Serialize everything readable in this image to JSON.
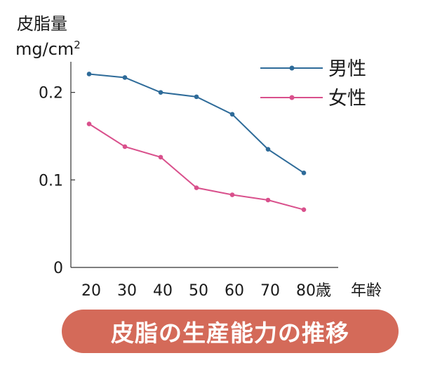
{
  "chart_data": {
    "type": "line",
    "ylabel": "皮脂量",
    "yunit_base": "mg/cm",
    "yunit_exp": "2",
    "xlabel": "年齢",
    "categories": [
      "20",
      "30",
      "40",
      "50",
      "60",
      "70",
      "80歳"
    ],
    "yticks": [
      "0",
      "0.1",
      "0.2"
    ],
    "ylim": [
      0,
      0.235
    ],
    "grid": false,
    "legend_position": "top-right",
    "series": [
      {
        "name": "男性",
        "color": "#2e6b99",
        "values": [
          0.221,
          0.217,
          0.2,
          0.195,
          0.175,
          0.135,
          0.108
        ]
      },
      {
        "name": "女性",
        "color": "#d9508c",
        "values": [
          0.164,
          0.138,
          0.126,
          0.091,
          0.083,
          0.077,
          0.066
        ]
      }
    ]
  },
  "banner": {
    "text": "皮脂の生産能力の推移",
    "color": "#d46a59"
  }
}
